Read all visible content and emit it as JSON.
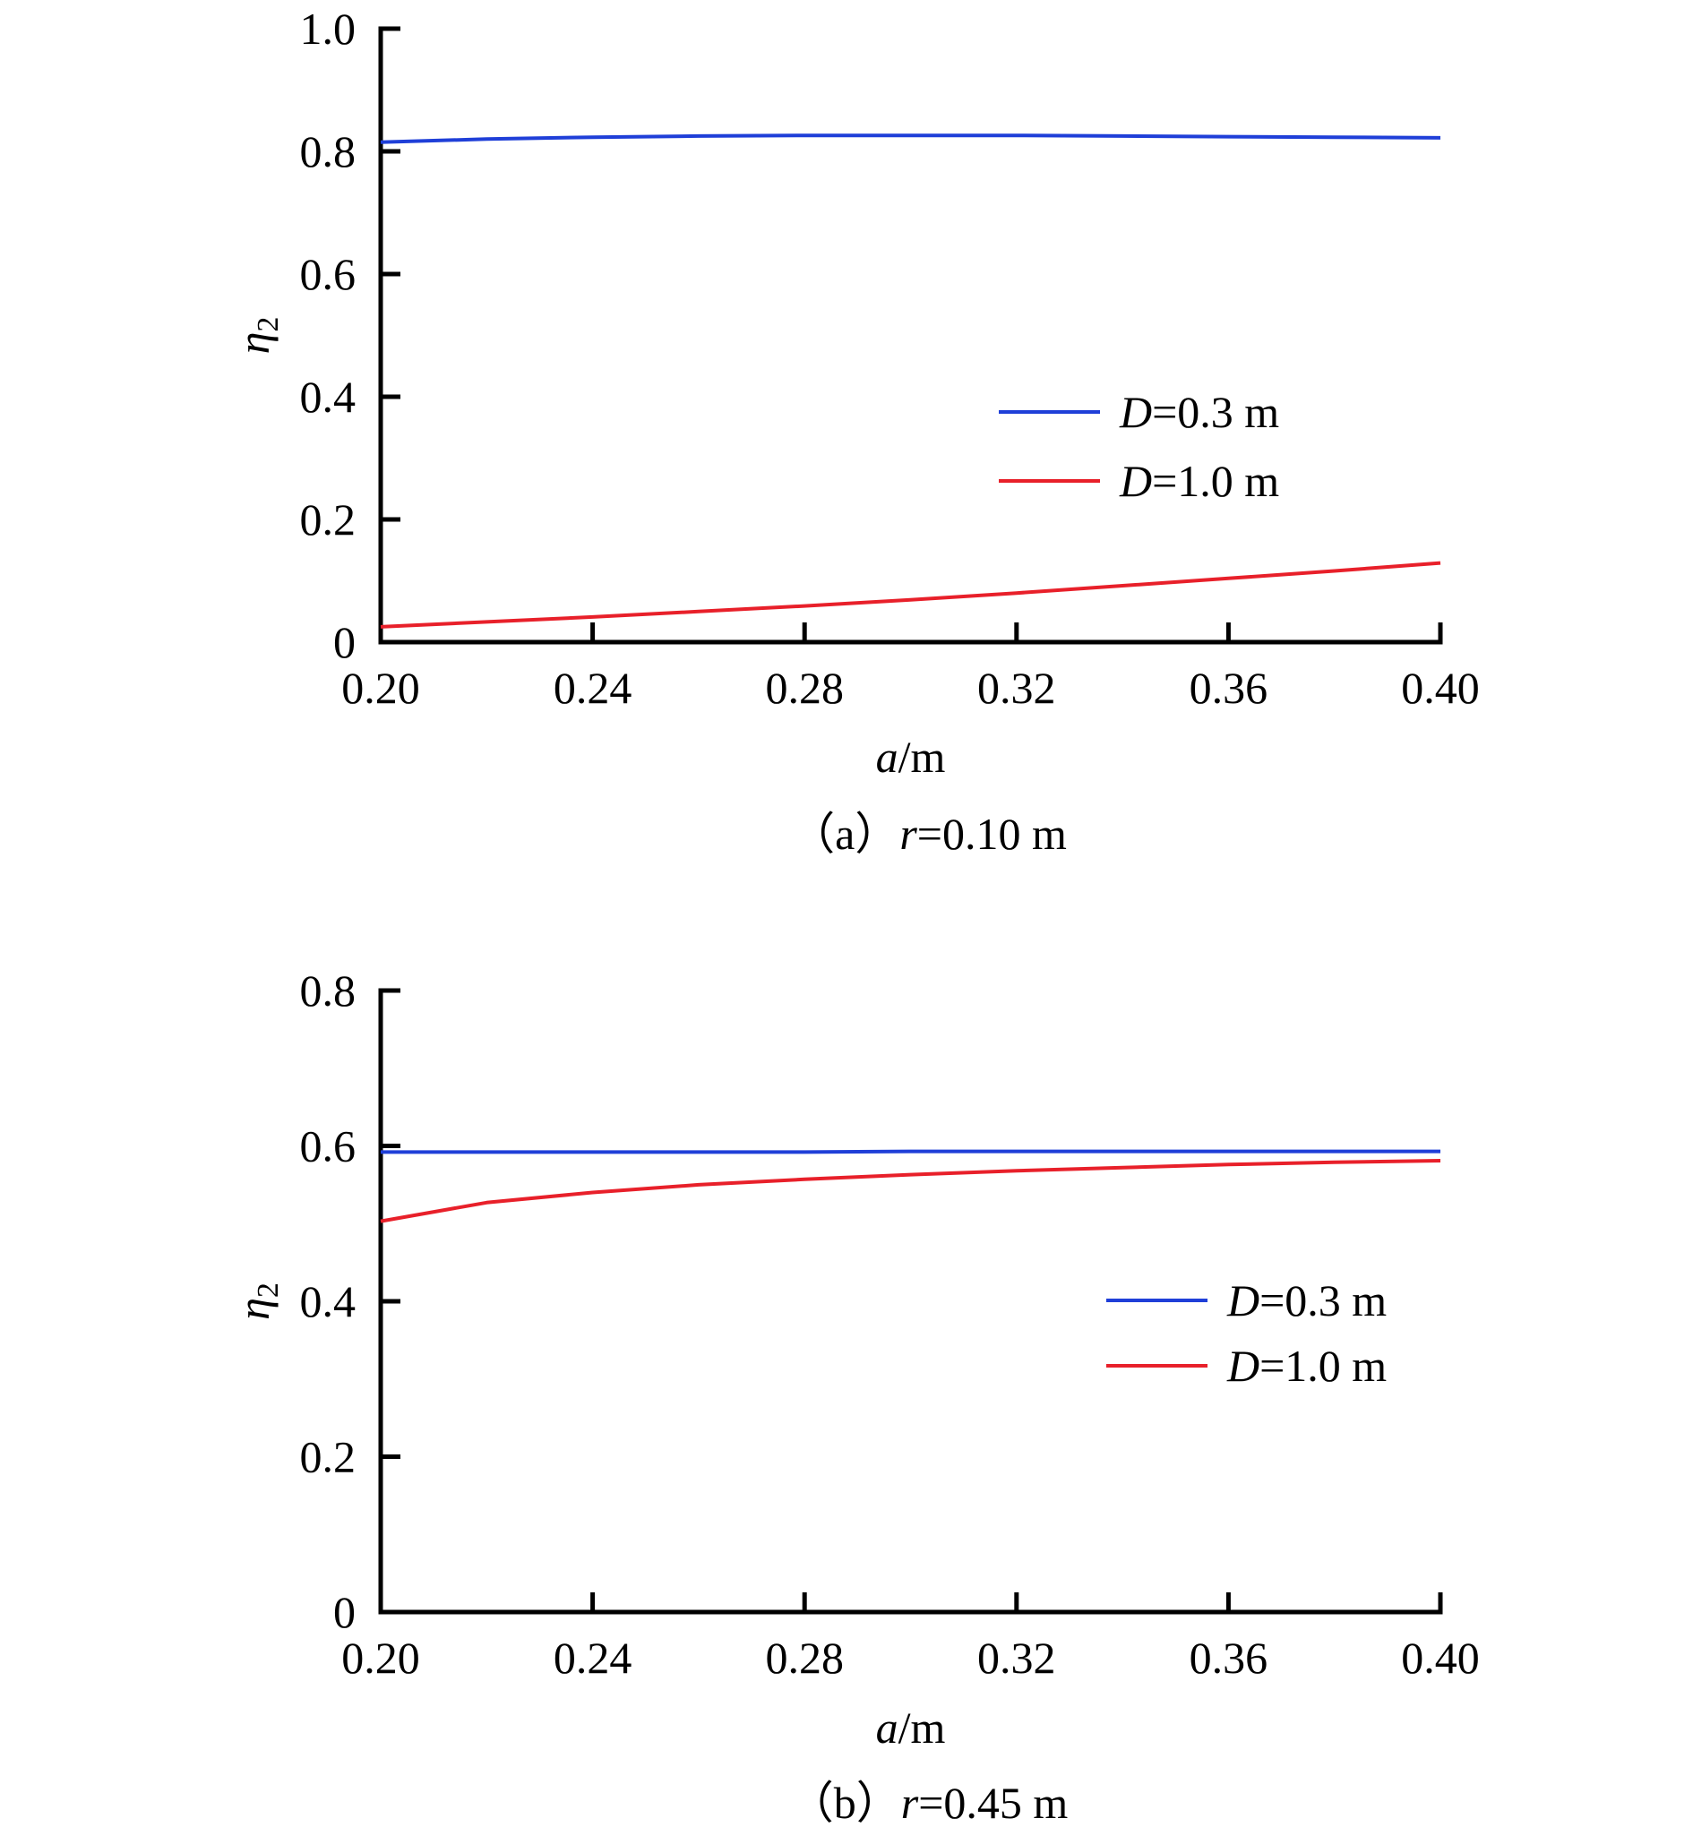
{
  "colors": {
    "series_0": "#1f3fd8",
    "series_1": "#e8202a",
    "axis": "#000000"
  },
  "chart_data": [
    {
      "type": "line",
      "caption": {
        "prefix": "（a）",
        "var": "r",
        "rest": "=0.10 m"
      },
      "xlabel": {
        "var": "a",
        "unit": "/m"
      },
      "ylabel": {
        "var": "η",
        "sub": "2"
      },
      "xlim": [
        0.2,
        0.4
      ],
      "ylim": [
        0,
        1.0
      ],
      "xticks": [
        0.2,
        0.24,
        0.28,
        0.32,
        0.36,
        0.4
      ],
      "xtick_labels": [
        "0.20",
        "0.24",
        "0.28",
        "0.32",
        "0.36",
        "0.40"
      ],
      "yticks": [
        0,
        0.2,
        0.4,
        0.6,
        0.8,
        1.0
      ],
      "ytick_labels": [
        "0",
        "0.2",
        "0.4",
        "0.6",
        "0.8",
        "1.0"
      ],
      "legend_position": "center-right",
      "grid": false,
      "x": [
        0.2,
        0.22,
        0.24,
        0.26,
        0.28,
        0.3,
        0.32,
        0.34,
        0.36,
        0.38,
        0.4
      ],
      "series": [
        {
          "name_var": "D",
          "name_rest": "=0.3 m",
          "color": "#1f3fd8",
          "values": [
            0.815,
            0.82,
            0.823,
            0.825,
            0.826,
            0.826,
            0.826,
            0.825,
            0.824,
            0.823,
            0.822
          ]
        },
        {
          "name_var": "D",
          "name_rest": "=1.0 m",
          "color": "#e8202a",
          "values": [
            0.025,
            0.033,
            0.041,
            0.05,
            0.059,
            0.069,
            0.08,
            0.092,
            0.104,
            0.116,
            0.129
          ]
        }
      ]
    },
    {
      "type": "line",
      "caption": {
        "prefix": "（b）",
        "var": "r",
        "rest": "=0.45 m"
      },
      "xlabel": {
        "var": "a",
        "unit": "/m"
      },
      "ylabel": {
        "var": "η",
        "sub": "2"
      },
      "xlim": [
        0.2,
        0.4
      ],
      "ylim": [
        0,
        0.8
      ],
      "xticks": [
        0.2,
        0.24,
        0.28,
        0.32,
        0.36,
        0.4
      ],
      "xtick_labels": [
        "0.20",
        "0.24",
        "0.28",
        "0.32",
        "0.36",
        "0.40"
      ],
      "yticks": [
        0,
        0.2,
        0.4,
        0.6,
        0.8
      ],
      "ytick_labels": [
        "0",
        "0.2",
        "0.4",
        "0.6",
        "0.8"
      ],
      "legend_position": "center-right",
      "grid": false,
      "x": [
        0.2,
        0.22,
        0.24,
        0.26,
        0.28,
        0.3,
        0.32,
        0.34,
        0.36,
        0.38,
        0.4
      ],
      "series": [
        {
          "name_var": "D",
          "name_rest": "=0.3 m",
          "color": "#1f3fd8",
          "values": [
            0.592,
            0.592,
            0.592,
            0.592,
            0.592,
            0.593,
            0.593,
            0.593,
            0.593,
            0.593,
            0.593
          ]
        },
        {
          "name_var": "D",
          "name_rest": "=1.0 m",
          "color": "#e8202a",
          "values": [
            0.503,
            0.527,
            0.54,
            0.55,
            0.557,
            0.563,
            0.568,
            0.572,
            0.576,
            0.579,
            0.581
          ]
        }
      ]
    }
  ]
}
